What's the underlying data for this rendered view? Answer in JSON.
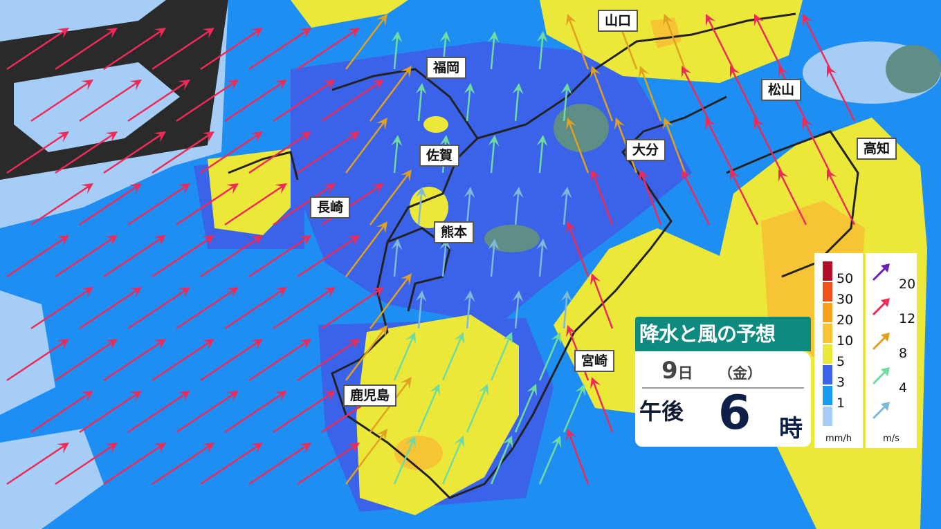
{
  "title": "降水と風の予想",
  "date": {
    "day": "9",
    "day_suffix": "日",
    "weekday": "（金）"
  },
  "time": {
    "period": "午後",
    "hour": "6",
    "suffix": "時"
  },
  "cities": [
    {
      "name": "山口"
    },
    {
      "name": "福岡"
    },
    {
      "name": "松山"
    },
    {
      "name": "佐賀"
    },
    {
      "name": "大分"
    },
    {
      "name": "高知"
    },
    {
      "name": "長崎"
    },
    {
      "name": "熊本"
    },
    {
      "name": "宮崎"
    },
    {
      "name": "鹿児島"
    }
  ],
  "rain_legend": {
    "unit": "mm/h",
    "levels": [
      {
        "label": "50",
        "color": "#b0102a"
      },
      {
        "label": "30",
        "color": "#f0521e"
      },
      {
        "label": "20",
        "color": "#f7a21a"
      },
      {
        "label": "10",
        "color": "#f7c436"
      },
      {
        "label": "5",
        "color": "#ece83a"
      },
      {
        "label": "3",
        "color": "#3a63ea"
      },
      {
        "label": "1",
        "color": "#1a9af0"
      },
      {
        "label": "",
        "color": "#a5cdf5"
      }
    ]
  },
  "wind_legend": {
    "unit": "m/s",
    "levels": [
      {
        "label": "20",
        "color": "#6a22b0"
      },
      {
        "label": "12",
        "color": "#ee2a58"
      },
      {
        "label": "8",
        "color": "#e0a020"
      },
      {
        "label": "4",
        "color": "#6fdba0"
      },
      {
        "label": "",
        "color": "#7fb8d8"
      }
    ]
  }
}
